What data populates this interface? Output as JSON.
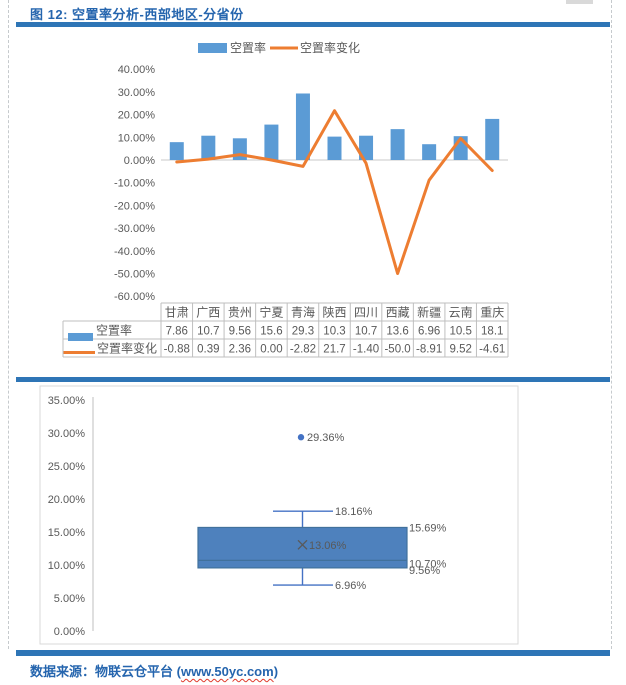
{
  "header": {
    "title": "图 12: 空置率分析-西部地区-分省份"
  },
  "footer": {
    "prefix": "数据来源：物联云仓平台 (",
    "url": "www.50yc.com",
    "suffix": ")"
  },
  "colors": {
    "accent_blue": "#2E75B6",
    "title_blue": "#2565AE",
    "bar_blue": "#5B9BD5",
    "line_orange": "#ED7D31",
    "box_fill": "#4E81BD",
    "box_border": "#41719C",
    "whisker_blue": "#4472C4",
    "outlier_blue": "#4472C4",
    "mean_gray": "#595959",
    "axis_text": "#595959",
    "value_text": "#595959",
    "zero_grid": "#C9C9C9",
    "table_border": "#BFBFBF",
    "frame_gray": "#D9D9D9",
    "axis_line": "#BFBFBF",
    "spellcheck_red": "#E03A2B"
  },
  "chart_data": [
    {
      "type": "bar",
      "subtype": "combo-bar-line-with-data-table",
      "title": "",
      "categories": [
        "甘肃",
        "广西",
        "贵州",
        "宁夏",
        "青海",
        "陕西",
        "四川",
        "西藏",
        "新疆",
        "云南",
        "重庆"
      ],
      "series": [
        {
          "name": "空置率",
          "kind": "bar",
          "color": "#5B9BD5",
          "values": [
            7.86,
            10.7,
            9.56,
            15.6,
            29.3,
            10.3,
            10.7,
            13.6,
            6.96,
            10.5,
            18.1
          ],
          "table_labels": [
            "7.86",
            "10.7",
            "9.56",
            "15.6",
            "29.3",
            "10.3",
            "10.7",
            "13.6",
            "6.96",
            "10.5",
            "18.1"
          ]
        },
        {
          "name": "空置率变化",
          "kind": "line",
          "color": "#ED7D31",
          "values": [
            -0.88,
            0.39,
            2.36,
            0.0,
            -2.82,
            21.7,
            -1.4,
            -50.0,
            -8.91,
            9.52,
            -4.61
          ],
          "table_labels": [
            "-0.88",
            "0.39",
            "2.36",
            "0.00",
            "-2.82",
            "21.7",
            "-1.40",
            "-50.0",
            "-8.91",
            "9.52",
            "-4.61"
          ]
        }
      ],
      "y_axis": {
        "min": -60,
        "max": 40,
        "step": 10,
        "ticks": [
          {
            "v": 40,
            "label": "40.00%"
          },
          {
            "v": 30,
            "label": "30.00%"
          },
          {
            "v": 20,
            "label": "20.00%"
          },
          {
            "v": 10,
            "label": "10.00%"
          },
          {
            "v": 0,
            "label": "0.00%"
          },
          {
            "v": -10,
            "label": "-10.00%"
          },
          {
            "v": -20,
            "label": "-20.00%"
          },
          {
            "v": -30,
            "label": "-30.00%"
          },
          {
            "v": -40,
            "label": "-40.00%"
          },
          {
            "v": -50,
            "label": "-50.00%"
          },
          {
            "v": -60,
            "label": "-60.00%"
          }
        ]
      },
      "legend": {
        "position": "top",
        "entries": [
          "空置率",
          "空置率变化"
        ]
      },
      "grid": "zero-line-only",
      "data_table_shown": true
    },
    {
      "type": "boxplot",
      "title": "",
      "series_name": "空置率",
      "y_axis": {
        "min": 0,
        "max": 35,
        "step": 5,
        "ticks": [
          {
            "v": 35,
            "label": "35.00%"
          },
          {
            "v": 30,
            "label": "30.00%"
          },
          {
            "v": 25,
            "label": "25.00%"
          },
          {
            "v": 20,
            "label": "20.00%"
          },
          {
            "v": 15,
            "label": "15.00%"
          },
          {
            "v": 10,
            "label": "10.00%"
          },
          {
            "v": 5,
            "label": "5.00%"
          },
          {
            "v": 0,
            "label": "0.00%"
          }
        ]
      },
      "grid": "off",
      "stats": {
        "outlier": 29.36,
        "whisker_high": 18.16,
        "q3": 15.69,
        "mean": 13.06,
        "median": 10.7,
        "q1": 9.56,
        "whisker_low": 6.96
      },
      "point_labels": {
        "outlier": "29.36%",
        "whisker_high": "18.16%",
        "q3": "15.69%",
        "mean": "13.06%",
        "median": "10.70%",
        "q1": "9.56%",
        "whisker_low": "6.96%"
      },
      "mean_marker": "×"
    }
  ]
}
